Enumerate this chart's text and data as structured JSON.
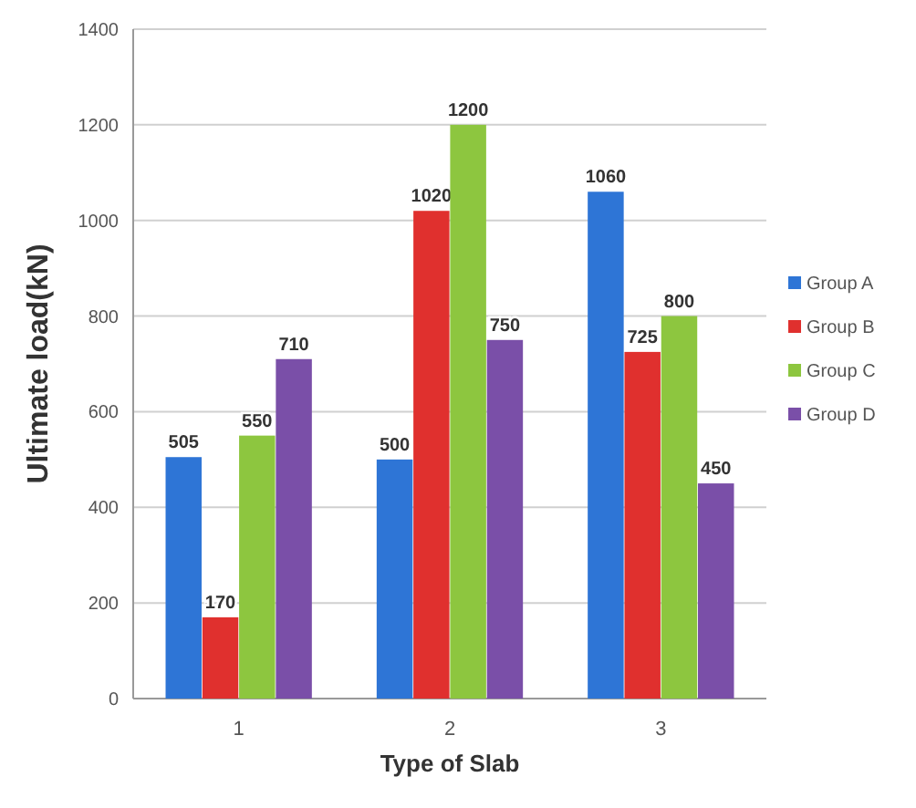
{
  "chart_data": {
    "type": "bar",
    "xlabel": "Type of Slab",
    "ylabel": "Ultimate load(kN)",
    "categories": [
      "1",
      "2",
      "3"
    ],
    "series": [
      {
        "name": "Group A",
        "color": "#2e75d6",
        "values": [
          505,
          500,
          1060
        ]
      },
      {
        "name": "Group B",
        "color": "#e0302e",
        "values": [
          170,
          1020,
          725
        ]
      },
      {
        "name": "Group C",
        "color": "#8dc63f",
        "values": [
          550,
          1200,
          800
        ]
      },
      {
        "name": "Group D",
        "color": "#7a4fa8",
        "values": [
          710,
          750,
          450
        ]
      }
    ],
    "ylim": [
      0,
      1400
    ],
    "yticks": [
      0,
      200,
      400,
      600,
      800,
      1000,
      1200,
      1400
    ],
    "grid": "y",
    "legend": "right",
    "data_labels": true
  }
}
